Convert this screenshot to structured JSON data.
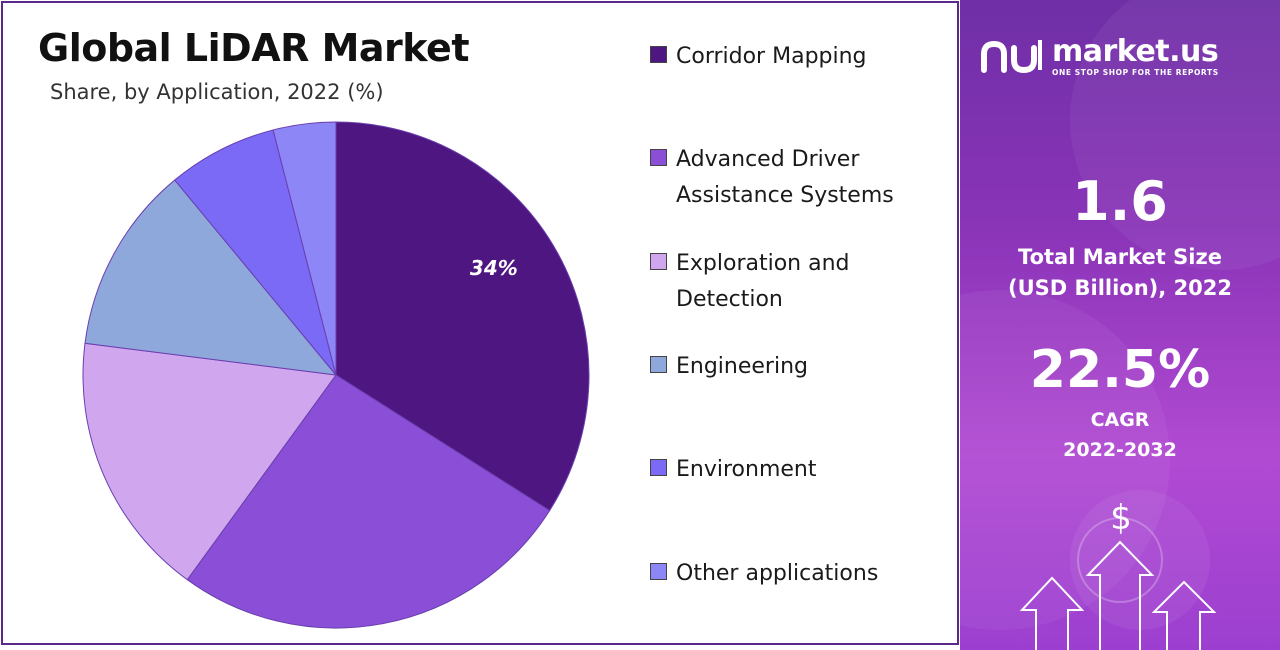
{
  "chart_data": {
    "type": "pie",
    "title": "Global LiDAR Market",
    "subtitle": "Share, by Application, 2022 (%)",
    "categories": [
      "Corridor Mapping",
      "Advanced Driver Assistance Systems",
      "Exploration and Detection",
      "Engineering",
      "Environment",
      "Other applications"
    ],
    "values": [
      34,
      26,
      17,
      12,
      7,
      4
    ],
    "colors": [
      "#4e1680",
      "#8a4fd6",
      "#d0a6ee",
      "#8ea8dc",
      "#7a6af5",
      "#8d86f7"
    ],
    "data_labels": [
      "34%"
    ],
    "legend_position": "right"
  },
  "legend_items": [
    {
      "label": "Corridor Mapping",
      "color": "#4e1680"
    },
    {
      "label": "Advanced Driver Assistance Systems",
      "color": "#8a4fd6"
    },
    {
      "label": "Exploration and Detection",
      "color": "#d0a6ee"
    },
    {
      "label": "Engineering",
      "color": "#8ea8dc"
    },
    {
      "label": "Environment",
      "color": "#7a6af5"
    },
    {
      "label": "Other applications",
      "color": "#8d86f7"
    }
  ],
  "panel": {
    "brand_name": "market.us",
    "tagline": "ONE STOP SHOP FOR THE REPORTS",
    "market_size_value": "1.6",
    "market_size_label_line1": "Total Market Size",
    "market_size_label_line2": "(USD Billion), 2022",
    "cagr_value": "22.5%",
    "cagr_label": "CAGR",
    "cagr_period": "2022-2032",
    "dollar_symbol": "$"
  }
}
